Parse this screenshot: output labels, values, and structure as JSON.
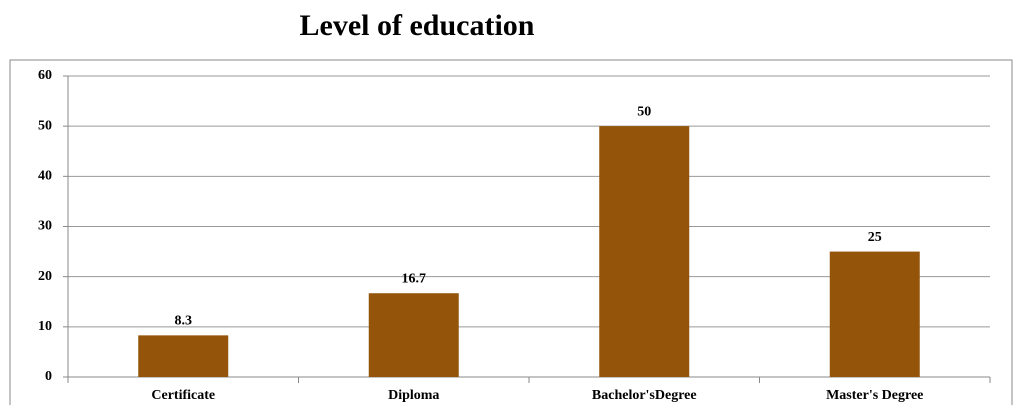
{
  "chart_data": {
    "type": "bar",
    "title": "Level of education",
    "categories": [
      "Certificate",
      "Diploma",
      "Bachelor'sDegree",
      "Master's Degree"
    ],
    "values": [
      8.3,
      16.7,
      50,
      25
    ],
    "color": "#94540a",
    "ylim": [
      0,
      60
    ],
    "yticks": [
      0,
      10,
      20,
      30,
      40,
      50,
      60
    ],
    "grid": true
  }
}
